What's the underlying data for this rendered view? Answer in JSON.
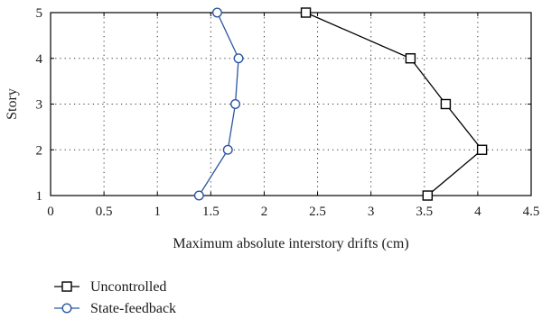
{
  "chart_data": {
    "type": "line",
    "title": "",
    "xlabel": "Maximum absolute interstory drifts (cm)",
    "ylabel": "Story",
    "xlim": [
      0,
      4.5
    ],
    "ylim": [
      1,
      5
    ],
    "x_ticks": [
      "0",
      "0.5",
      "1",
      "1.5",
      "2",
      "2.5",
      "3",
      "3.5",
      "4",
      "4.5"
    ],
    "y_ticks": [
      "1",
      "2",
      "3",
      "4",
      "5"
    ],
    "grid": true,
    "legend_position": "bottom-left (below plot)",
    "series": [
      {
        "name": "Uncontrolled",
        "color": "#000000",
        "marker": "square",
        "points": [
          {
            "x": 3.53,
            "y": 1
          },
          {
            "x": 4.04,
            "y": 2
          },
          {
            "x": 3.7,
            "y": 3
          },
          {
            "x": 3.37,
            "y": 4
          },
          {
            "x": 2.39,
            "y": 5
          }
        ]
      },
      {
        "name": "State-feedback",
        "color": "#2b57a0",
        "marker": "circle",
        "points": [
          {
            "x": 1.39,
            "y": 1
          },
          {
            "x": 1.66,
            "y": 2
          },
          {
            "x": 1.73,
            "y": 3
          },
          {
            "x": 1.76,
            "y": 4
          },
          {
            "x": 1.56,
            "y": 5
          }
        ]
      }
    ]
  }
}
